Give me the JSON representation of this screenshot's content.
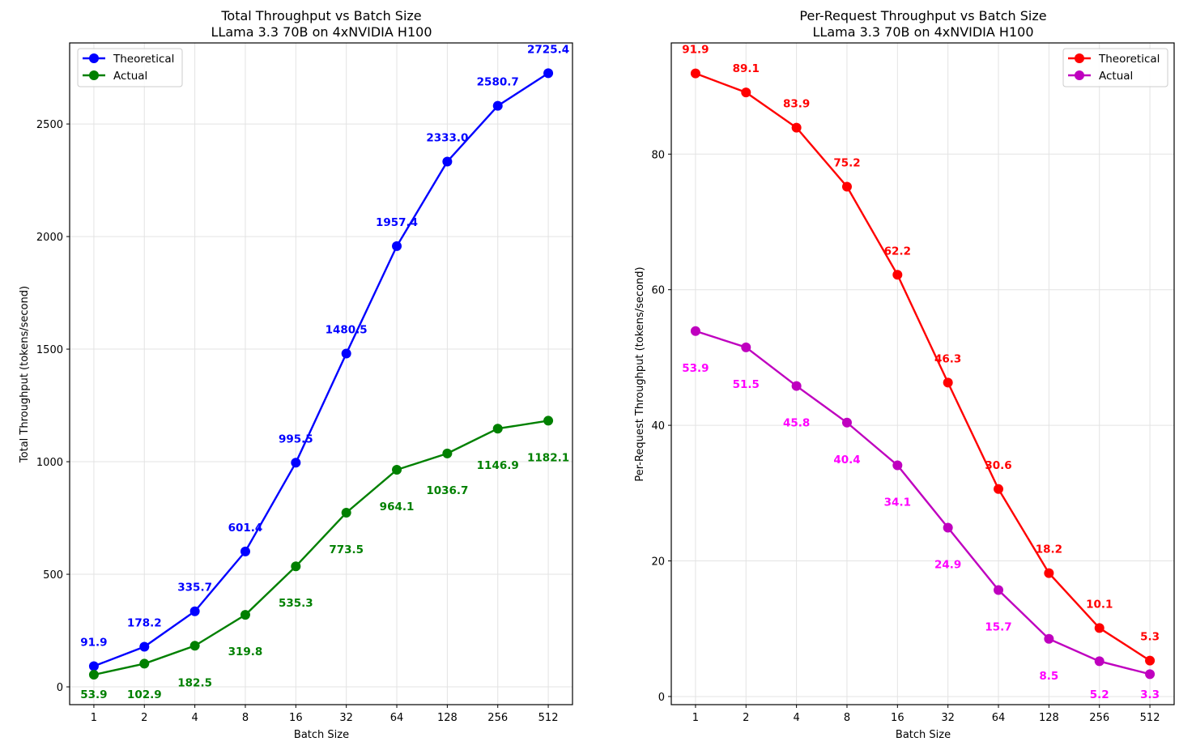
{
  "chart_data": [
    {
      "type": "line",
      "title": "Total Throughput vs Batch Size",
      "subtitle": "LLama 3.3 70B on 4xNVIDIA H100",
      "xlabel": "Batch Size",
      "ylabel": "Total Throughput (tokens/second)",
      "categories": [
        "1",
        "2",
        "4",
        "8",
        "16",
        "32",
        "64",
        "128",
        "256",
        "512"
      ],
      "yticks": [
        0,
        500,
        1000,
        1500,
        2000,
        2500
      ],
      "ylim": [
        -79,
        2860
      ],
      "grid": true,
      "legend_position": "top-left",
      "series": [
        {
          "name": "Theoretical",
          "color": "#0000ff",
          "label_color": "#0000ff",
          "label_position": "above",
          "values": [
            91.9,
            178.2,
            335.7,
            601.4,
            995.5,
            1480.5,
            1957.4,
            2333.0,
            2580.7,
            2725.4
          ],
          "labels": [
            "91.9",
            "178.2",
            "335.7",
            "601.4",
            "995.5",
            "1480.5",
            "1957.4",
            "2333.0",
            "2580.7",
            "2725.4"
          ]
        },
        {
          "name": "Actual",
          "color": "#008000",
          "label_color": "#008000",
          "label_position": "below",
          "values": [
            53.9,
            102.9,
            182.5,
            319.8,
            535.3,
            773.5,
            964.1,
            1036.7,
            1146.9,
            1182.1
          ],
          "labels": [
            "53.9",
            "102.9",
            "182.5",
            "319.8",
            "535.3",
            "773.5",
            "964.1",
            "1036.7",
            "1146.9",
            "1182.1"
          ]
        }
      ]
    },
    {
      "type": "line",
      "title": "Per-Request Throughput vs Batch Size",
      "subtitle": "LLama 3.3 70B on 4xNVIDIA H100",
      "xlabel": "Batch Size",
      "ylabel": "Per-Request Throughput (tokens/second)",
      "categories": [
        "1",
        "2",
        "4",
        "8",
        "16",
        "32",
        "64",
        "128",
        "256",
        "512"
      ],
      "yticks": [
        0,
        20,
        40,
        60,
        80
      ],
      "ylim": [
        -1.2,
        96.4
      ],
      "grid": true,
      "legend_position": "top-right",
      "series": [
        {
          "name": "Theoretical",
          "color": "#ff0000",
          "label_color": "#ff0000",
          "label_position": "above",
          "values": [
            91.9,
            89.1,
            83.9,
            75.2,
            62.2,
            46.3,
            30.6,
            18.2,
            10.1,
            5.3
          ],
          "labels": [
            "91.9",
            "89.1",
            "83.9",
            "75.2",
            "62.2",
            "46.3",
            "30.6",
            "18.2",
            "10.1",
            "5.3"
          ]
        },
        {
          "name": "Actual",
          "color": "#bf00bf",
          "label_color": "#ff00ff",
          "label_position": "below",
          "values": [
            53.9,
            51.5,
            45.8,
            40.4,
            34.1,
            24.9,
            15.7,
            8.5,
            5.2,
            3.3
          ],
          "labels": [
            "53.9",
            "51.5",
            "45.8",
            "40.4",
            "34.1",
            "24.9",
            "15.7",
            "8.5",
            "5.2",
            "3.3"
          ]
        }
      ]
    }
  ]
}
